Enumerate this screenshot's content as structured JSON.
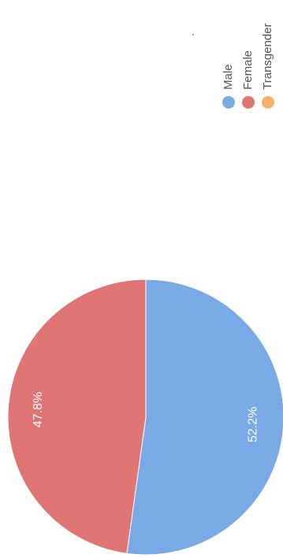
{
  "chart_data": {
    "type": "pie",
    "categories": [
      "Male",
      "Female",
      "Transgender"
    ],
    "values": [
      52.2,
      47.8,
      0
    ],
    "value_labels": [
      "52.2%",
      "47.8%",
      null
    ],
    "colors": [
      "#7aaae6",
      "#e07575",
      "#f6b26b"
    ]
  }
}
